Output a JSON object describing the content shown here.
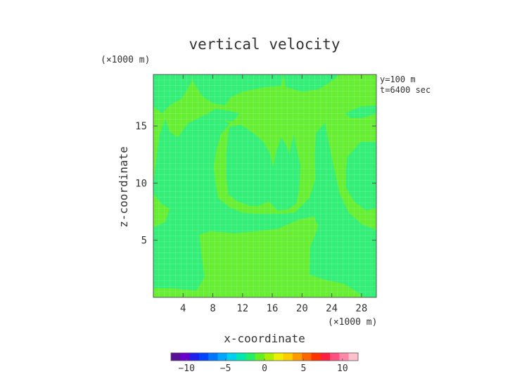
{
  "chart_data": {
    "type": "heatmap",
    "title": "vertical velocity",
    "xlabel": "x-coordinate",
    "ylabel": "z-coordinate",
    "x_unit": "(×1000 m)",
    "y_unit": "(×1000 m)",
    "annotations": [
      "y=100 m",
      "t=6400 sec"
    ],
    "xlim": [
      0,
      30
    ],
    "ylim": [
      0,
      19.5
    ],
    "xticks": [
      4,
      8,
      12,
      16,
      20,
      24,
      28
    ],
    "yticks": [
      5,
      10,
      15
    ],
    "field_colors": {
      "positive": "#66ee33",
      "negative": "#33ee77"
    },
    "regions_negative": [
      [
        [
          5,
          19.5
        ],
        [
          5.4,
          18.8
        ],
        [
          6.6,
          17.6
        ],
        [
          8,
          17
        ],
        [
          9.6,
          16.8
        ],
        [
          10.4,
          17.5
        ],
        [
          12,
          18
        ],
        [
          15,
          18.4
        ],
        [
          17.2,
          18.5
        ],
        [
          17.5,
          19.5
        ]
      ],
      [
        [
          25,
          19.5
        ],
        [
          24.2,
          19
        ],
        [
          22.2,
          18.2
        ],
        [
          20,
          18
        ],
        [
          17.8,
          18.4
        ],
        [
          17.5,
          19.5
        ]
      ],
      [
        [
          0,
          10
        ],
        [
          0.4,
          12
        ],
        [
          0.8,
          14.2
        ],
        [
          1.6,
          15.6
        ],
        [
          2.2,
          14.5
        ],
        [
          3.3,
          14
        ],
        [
          4.6,
          15.2
        ],
        [
          7,
          16
        ],
        [
          8.7,
          15.8
        ],
        [
          10.3,
          15.2
        ],
        [
          9.1,
          14.3
        ],
        [
          8.5,
          13
        ],
        [
          8.1,
          11.4
        ],
        [
          8.4,
          9.8
        ],
        [
          8.7,
          8.7
        ],
        [
          10.2,
          7.9
        ],
        [
          12,
          7.4
        ],
        [
          14,
          7.3
        ],
        [
          16.5,
          7.3
        ],
        [
          19,
          7.4
        ],
        [
          21,
          8.7
        ],
        [
          21.8,
          10.4
        ],
        [
          21.7,
          12.4
        ],
        [
          21.9,
          14.4
        ],
        [
          23.1,
          15.3
        ],
        [
          23.3,
          14.5
        ],
        [
          24.3,
          11.3
        ],
        [
          25.1,
          9
        ],
        [
          26.3,
          7.4
        ],
        [
          28,
          6.4
        ],
        [
          30,
          5.9
        ],
        [
          30,
          0
        ],
        [
          28.4,
          0
        ],
        [
          27.1,
          0.6
        ],
        [
          25.6,
          1.2
        ],
        [
          23.3,
          1.5
        ],
        [
          21,
          2
        ],
        [
          21.1,
          4.4
        ],
        [
          22.2,
          6.2
        ],
        [
          21.6,
          7.1
        ],
        [
          19.5,
          6.8
        ],
        [
          16.7,
          6
        ],
        [
          14,
          5.8
        ],
        [
          10.9,
          5.6
        ],
        [
          7.7,
          5.8
        ],
        [
          6.2,
          5.5
        ],
        [
          6.5,
          3.5
        ],
        [
          6.9,
          1.8
        ],
        [
          5.8,
          0.6
        ],
        [
          4,
          0.7
        ],
        [
          2.4,
          0.8
        ],
        [
          0,
          0.8
        ],
        [
          0,
          6.1
        ],
        [
          1.6,
          6.6
        ],
        [
          2.2,
          7.8
        ],
        [
          1.2,
          8.1
        ],
        [
          0,
          9.1
        ]
      ],
      [
        [
          0,
          19.5
        ],
        [
          0,
          16.7
        ],
        [
          1.2,
          16.1
        ],
        [
          2.2,
          16.8
        ],
        [
          3.8,
          17.4
        ],
        [
          5.2,
          18.9
        ],
        [
          5,
          19.5
        ]
      ],
      [
        [
          10.2,
          14.9
        ],
        [
          11.8,
          15.1
        ],
        [
          13.4,
          14.4
        ],
        [
          14.8,
          13.6
        ],
        [
          15.7,
          12.6
        ],
        [
          16.1,
          11.4
        ],
        [
          16.5,
          12.7
        ],
        [
          17.2,
          14
        ],
        [
          17.8,
          13.4
        ],
        [
          18.3,
          12.6
        ],
        [
          18.6,
          13.5
        ],
        [
          18.9,
          14.3
        ],
        [
          19.2,
          13.2
        ],
        [
          19.5,
          12.4
        ],
        [
          19.8,
          11.6
        ],
        [
          19.6,
          9.3
        ],
        [
          19.2,
          8.2
        ],
        [
          18.1,
          7.7
        ],
        [
          16.7,
          7.6
        ],
        [
          15.5,
          8.4
        ],
        [
          14.2,
          8
        ],
        [
          13,
          8
        ],
        [
          11.3,
          8.4
        ],
        [
          10.1,
          9
        ],
        [
          9.8,
          10.6
        ],
        [
          9.8,
          12.5
        ],
        [
          10,
          13.9
        ]
      ],
      [
        [
          26.1,
          12.3
        ],
        [
          27.9,
          13.6
        ],
        [
          30,
          13.6
        ],
        [
          30,
          7.8
        ],
        [
          28.6,
          7.6
        ],
        [
          27,
          8.4
        ],
        [
          25.9,
          9.6
        ],
        [
          25.9,
          11
        ]
      ],
      [
        [
          7.3,
          16.1
        ],
        [
          8.4,
          16.5
        ],
        [
          10.3,
          16.3
        ],
        [
          11.6,
          16.1
        ],
        [
          10.7,
          15.4
        ],
        [
          9.5,
          15.5
        ],
        [
          8.1,
          15.5
        ]
      ],
      [
        [
          25.8,
          16.1
        ],
        [
          27.8,
          16.7
        ],
        [
          30,
          16.8
        ],
        [
          30,
          16.1
        ],
        [
          28.1,
          15.7
        ],
        [
          26.5,
          15.7
        ]
      ]
    ],
    "colorbar": {
      "min": -12,
      "max": 12,
      "ticks": [
        -10,
        -5,
        0,
        5,
        10
      ],
      "colors": [
        "#5a1096",
        "#6a00cc",
        "#2020ee",
        "#0044ff",
        "#0077ff",
        "#00a6ff",
        "#00d0ee",
        "#00e8b0",
        "#22ee66",
        "#66ee22",
        "#aaee00",
        "#eeee00",
        "#ffcc00",
        "#ff9900",
        "#ff6600",
        "#ff3300",
        "#ff2040",
        "#ff5080",
        "#ff88aa",
        "#ffc0cc"
      ]
    }
  }
}
